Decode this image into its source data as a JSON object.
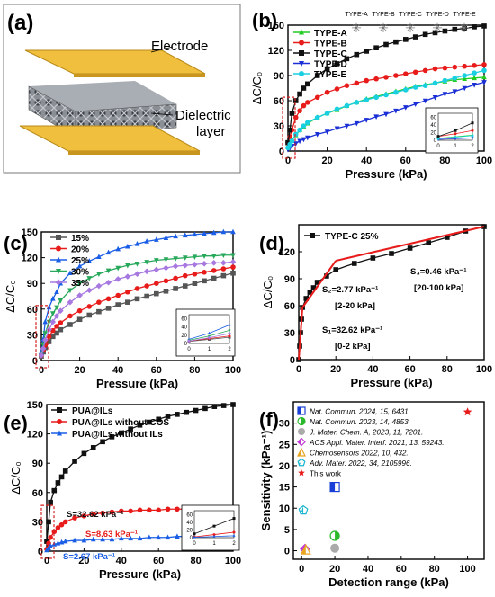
{
  "chart_data": [
    {
      "panel": "(a)",
      "type": "diagram",
      "labels": [
        "Electrode",
        "Dielectric",
        "layer"
      ]
    },
    {
      "panel": "(b)",
      "type": "line",
      "ylabel": "ΔC/C₀",
      "xlabel": "Pressure (kPa)",
      "xlim": [
        0,
        100
      ],
      "ylim": [
        0,
        150
      ],
      "xticks": [
        "0",
        "20",
        "40",
        "60",
        "80",
        "100"
      ],
      "yticks": [
        "0",
        "30",
        "60",
        "90",
        "120",
        "150"
      ],
      "legend_position": "top-left",
      "type_labels": [
        "TYPE-A",
        "TYPE-B",
        "TYPE-C",
        "TYPE-D",
        "TYPE-E"
      ],
      "series": [
        {
          "name": "TYPE-A",
          "color": "#22cc22",
          "marker": "triangle-up",
          "x": [
            0,
            1,
            2,
            4,
            6,
            8,
            10,
            15,
            20,
            25,
            30,
            35,
            40,
            45,
            50,
            55,
            60,
            65,
            70,
            75,
            80,
            85,
            90,
            95,
            100
          ],
          "y": [
            5,
            9,
            13,
            19,
            25,
            29,
            33,
            40,
            45,
            49,
            54,
            58,
            62,
            65,
            68,
            71,
            74,
            77,
            79,
            81,
            83,
            85,
            86,
            87,
            88
          ]
        },
        {
          "name": "TYPE-B",
          "color": "#e81b1b",
          "marker": "circle",
          "x": [
            0,
            1,
            2,
            4,
            6,
            8,
            10,
            15,
            20,
            25,
            30,
            35,
            40,
            45,
            50,
            55,
            60,
            65,
            70,
            75,
            80,
            85,
            90,
            95,
            100
          ],
          "y": [
            10,
            17,
            25,
            40,
            48,
            54,
            58,
            64,
            70,
            74,
            78,
            81,
            84,
            86,
            88,
            90,
            92,
            94,
            96,
            98,
            99,
            100,
            101,
            102,
            103
          ]
        },
        {
          "name": "TYPE-C",
          "color": "#111111",
          "marker": "square",
          "x": [
            0,
            1,
            2,
            4,
            6,
            8,
            10,
            15,
            20,
            25,
            30,
            35,
            40,
            45,
            50,
            55,
            60,
            65,
            70,
            75,
            80,
            85,
            90,
            95,
            100
          ],
          "y": [
            10,
            25,
            45,
            60,
            68,
            75,
            80,
            90,
            98,
            104,
            110,
            115,
            119,
            123,
            127,
            130,
            133,
            136,
            139,
            141,
            143,
            145,
            146,
            148,
            149
          ]
        },
        {
          "name": "TYPE-D",
          "color": "#1a2fd6",
          "marker": "triangle-down",
          "x": [
            0,
            1,
            2,
            4,
            6,
            8,
            10,
            15,
            20,
            25,
            30,
            35,
            40,
            45,
            50,
            55,
            60,
            65,
            70,
            75,
            80,
            85,
            90,
            95,
            100
          ],
          "y": [
            2,
            4,
            6,
            9,
            12,
            14,
            16,
            20,
            23,
            27,
            30,
            33,
            37,
            41,
            44,
            48,
            52,
            56,
            60,
            64,
            68,
            71,
            75,
            79,
            82
          ]
        },
        {
          "name": "TYPE-E",
          "color": "#19cfe0",
          "marker": "circle",
          "x": [
            0,
            1,
            2,
            4,
            6,
            8,
            10,
            15,
            20,
            25,
            30,
            35,
            40,
            45,
            50,
            55,
            60,
            65,
            70,
            75,
            80,
            85,
            90,
            95,
            100
          ],
          "y": [
            4,
            8,
            12,
            20,
            25,
            30,
            34,
            40,
            45,
            50,
            54,
            58,
            61,
            64,
            67,
            70,
            73,
            76,
            78,
            81,
            84,
            87,
            90,
            93,
            96
          ]
        }
      ],
      "inset": {
        "xticks": [
          "0",
          "1",
          "2"
        ],
        "yticks": [
          "0",
          "20",
          "40",
          "60"
        ],
        "xlim": [
          0,
          2
        ],
        "ylim": [
          0,
          70
        ]
      }
    },
    {
      "panel": "(c)",
      "type": "line",
      "ylabel": "ΔC/C₀",
      "xlabel": "Pressure (kPa)",
      "xlim": [
        0,
        100
      ],
      "ylim": [
        0,
        150
      ],
      "xticks": [
        "0",
        "20",
        "40",
        "60",
        "80",
        "100"
      ],
      "yticks": [
        "0",
        "30",
        "60",
        "90",
        "120",
        "150"
      ],
      "legend_position": "top-left",
      "series": [
        {
          "name": "15%",
          "color": "#555555",
          "marker": "square",
          "x": [
            0,
            1,
            2,
            4,
            6,
            8,
            10,
            15,
            20,
            25,
            30,
            35,
            40,
            45,
            50,
            55,
            60,
            65,
            70,
            75,
            80,
            85,
            90,
            95,
            100
          ],
          "y": [
            5,
            10,
            15,
            22,
            28,
            32,
            36,
            42,
            48,
            53,
            57,
            61,
            65,
            68,
            72,
            75,
            78,
            81,
            84,
            87,
            90,
            93,
            96,
            99,
            102
          ]
        },
        {
          "name": "20%",
          "color": "#e81b1b",
          "marker": "circle",
          "x": [
            0,
            1,
            2,
            4,
            6,
            8,
            10,
            15,
            20,
            25,
            30,
            35,
            40,
            45,
            50,
            55,
            60,
            65,
            70,
            75,
            80,
            85,
            90,
            95,
            100
          ],
          "y": [
            6,
            12,
            18,
            28,
            35,
            40,
            44,
            52,
            58,
            63,
            68,
            72,
            76,
            80,
            84,
            87,
            90,
            93,
            96,
            99,
            101,
            103,
            105,
            107,
            109
          ]
        },
        {
          "name": "25%",
          "color": "#1a5ee6",
          "marker": "triangle-up",
          "x": [
            0,
            1,
            2,
            4,
            6,
            8,
            10,
            15,
            20,
            25,
            30,
            35,
            40,
            45,
            50,
            55,
            60,
            65,
            70,
            75,
            80,
            85,
            90,
            95,
            100
          ],
          "y": [
            10,
            25,
            45,
            62,
            72,
            80,
            90,
            102,
            110,
            116,
            121,
            126,
            130,
            133,
            136,
            139,
            141,
            143,
            145,
            146,
            147,
            148,
            149,
            150,
            150
          ]
        },
        {
          "name": "30%",
          "color": "#27a85a",
          "marker": "triangle-down",
          "x": [
            0,
            1,
            2,
            4,
            6,
            8,
            10,
            15,
            20,
            25,
            30,
            35,
            40,
            45,
            50,
            55,
            60,
            65,
            70,
            75,
            80,
            85,
            90,
            95,
            100
          ],
          "y": [
            8,
            18,
            32,
            45,
            55,
            62,
            70,
            82,
            90,
            96,
            101,
            105,
            108,
            111,
            113,
            115,
            117,
            118,
            119,
            120,
            121,
            122,
            122,
            123,
            123
          ]
        },
        {
          "name": "35%",
          "color": "#a678e0",
          "marker": "diamond",
          "x": [
            0,
            1,
            2,
            4,
            6,
            8,
            10,
            15,
            20,
            25,
            30,
            35,
            40,
            45,
            50,
            55,
            60,
            65,
            70,
            75,
            80,
            85,
            90,
            95,
            100
          ],
          "y": [
            6,
            14,
            24,
            36,
            45,
            52,
            58,
            68,
            76,
            82,
            87,
            91,
            95,
            98,
            101,
            104,
            106,
            108,
            110,
            111,
            112,
            113,
            114,
            114,
            115
          ]
        }
      ],
      "inset": {
        "xticks": [
          "0",
          "1",
          "2"
        ],
        "yticks": [
          "0",
          "20",
          "40",
          "60"
        ],
        "xlim": [
          0,
          2
        ],
        "ylim": [
          0,
          70
        ]
      }
    },
    {
      "panel": "(d)",
      "type": "line",
      "ylabel": "ΔC/C₀",
      "xlabel": "Pressure (kPa)",
      "xlim": [
        0,
        100
      ],
      "ylim": [
        0,
        150
      ],
      "xticks": [
        "0",
        "20",
        "40",
        "60",
        "80",
        "100"
      ],
      "yticks": [
        "0",
        "30",
        "60",
        "90",
        "120"
      ],
      "legend_position": "top-left",
      "series": [
        {
          "name": "TYPE-C  25%",
          "color": "#111111",
          "marker": "square",
          "x": [
            0,
            0.5,
            1,
            1.5,
            2,
            4,
            6,
            8,
            10,
            15,
            20,
            30,
            40,
            50,
            60,
            70,
            80,
            90,
            100
          ],
          "y": [
            0,
            15,
            30,
            45,
            58,
            68,
            75,
            80,
            86,
            93,
            100,
            107,
            113,
            118,
            124,
            130,
            136,
            143,
            148
          ]
        }
      ],
      "fits": [
        {
          "label": "S₁=32.62 kPa⁻¹",
          "range": "[0-2 kPa]",
          "x": [
            0,
            2
          ],
          "y": [
            0,
            58
          ]
        },
        {
          "label": "S₂=2.77 kPa⁻¹",
          "range": "[2-20 kPa]",
          "x": [
            2,
            20
          ],
          "y": [
            58,
            110
          ]
        },
        {
          "label": "S₃=0.46 kPa⁻¹",
          "range": "[20-100 kPa]",
          "x": [
            20,
            100
          ],
          "y": [
            110,
            148
          ]
        }
      ]
    },
    {
      "panel": "(e)",
      "type": "line",
      "ylabel": "ΔC/C₀",
      "xlabel": "Pressure (kPa)",
      "xlim": [
        0,
        100
      ],
      "ylim": [
        0,
        150
      ],
      "xticks": [
        "0",
        "20",
        "40",
        "60",
        "80",
        "100"
      ],
      "yticks": [
        "0",
        "30",
        "60",
        "90",
        "120",
        "150"
      ],
      "legend_position": "top-left",
      "series": [
        {
          "name": "PUA@ILs",
          "color": "#111111",
          "marker": "square",
          "x": [
            0,
            1,
            2,
            4,
            6,
            8,
            10,
            15,
            20,
            25,
            30,
            35,
            40,
            45,
            50,
            55,
            60,
            65,
            70,
            75,
            80,
            85,
            90,
            95,
            100
          ],
          "y": [
            10,
            30,
            50,
            62,
            70,
            76,
            82,
            92,
            100,
            106,
            112,
            117,
            121,
            125,
            129,
            132,
            135,
            138,
            140,
            142,
            144,
            146,
            148,
            149,
            150
          ]
        },
        {
          "name": "PUA@ILs without COS",
          "color": "#e81b1b",
          "marker": "circle",
          "x": [
            0,
            1,
            2,
            4,
            6,
            8,
            10,
            15,
            20,
            25,
            30,
            35,
            40,
            45,
            50,
            55,
            60,
            65,
            70,
            75,
            80,
            85,
            90,
            95,
            100
          ],
          "y": [
            2,
            8,
            14,
            20,
            24,
            27,
            30,
            34,
            36,
            38,
            39,
            40,
            41,
            41,
            42,
            42,
            42,
            43,
            43,
            43,
            43,
            43,
            44,
            44,
            44
          ]
        },
        {
          "name": "PUA@ILs without ILs",
          "color": "#1a5ee6",
          "marker": "triangle-up",
          "x": [
            0,
            1,
            2,
            4,
            6,
            8,
            10,
            15,
            20,
            25,
            30,
            35,
            40,
            45,
            50,
            55,
            60,
            65,
            70,
            75,
            80,
            85,
            90,
            95,
            100
          ],
          "y": [
            1,
            3,
            5,
            7,
            8,
            9,
            10,
            11,
            11,
            12,
            12,
            12,
            13,
            13,
            13,
            14,
            14,
            14,
            15,
            15,
            15,
            16,
            16,
            17,
            17
          ]
        }
      ],
      "annotations": [
        {
          "text": "S=32.62 kPa⁻¹",
          "color": "#111111"
        },
        {
          "text": "S=8.63 kPa⁻¹",
          "color": "#e81b1b"
        },
        {
          "text": "S=2.67 kPa⁻¹",
          "color": "#1a5ee6"
        }
      ],
      "inset": {
        "xticks": [
          "0",
          "1",
          "2"
        ],
        "yticks": [
          "0",
          "20",
          "40",
          "60"
        ],
        "xlim": [
          0,
          2
        ],
        "ylim": [
          0,
          70
        ]
      }
    },
    {
      "panel": "(f)",
      "type": "scatter",
      "ylabel": "Sensitivity (kPa⁻¹)",
      "xlabel": "Detection range (kPa)",
      "xlim": [
        -5,
        110
      ],
      "ylim": [
        -2,
        35
      ],
      "xticks": [
        "0",
        "20",
        "40",
        "60",
        "80",
        "100"
      ],
      "yticks": [
        "0",
        "5",
        "10",
        "15",
        "20",
        "25",
        "30"
      ],
      "legend_position": "top-left",
      "points": [
        {
          "name": "Nat. Commun. 2024, 15, 6431.",
          "color": "#1a3fd6",
          "marker": "square-half",
          "x": 20,
          "y": 15
        },
        {
          "name": "Nat. Commun. 2023, 14, 4853.",
          "color": "#2bb82b",
          "marker": "circle-half",
          "x": 20,
          "y": 3.5
        },
        {
          "name": "J. Mater. Chem. A, 2023, 11, 7201.",
          "color": "#aaaaaa",
          "marker": "circle",
          "x": 20,
          "y": 0.6
        },
        {
          "name": "ACS Appl. Mater. Interf. 2021, 13, 59243.",
          "color": "#c036d6",
          "marker": "diamond-half",
          "x": 2,
          "y": 0.4
        },
        {
          "name": "Chemosensors 2022, 10, 432.",
          "color": "#e8a520",
          "marker": "triangle-half",
          "x": 2.5,
          "y": 0.3
        },
        {
          "name": "Adv. Mater. 2022, 34, 2105996.",
          "color": "#19b5d0",
          "marker": "pentagon-half",
          "x": 1,
          "y": 9.5
        },
        {
          "name": "This work",
          "color": "#e81b1b",
          "marker": "star",
          "x": 100,
          "y": 32.62
        }
      ]
    }
  ]
}
